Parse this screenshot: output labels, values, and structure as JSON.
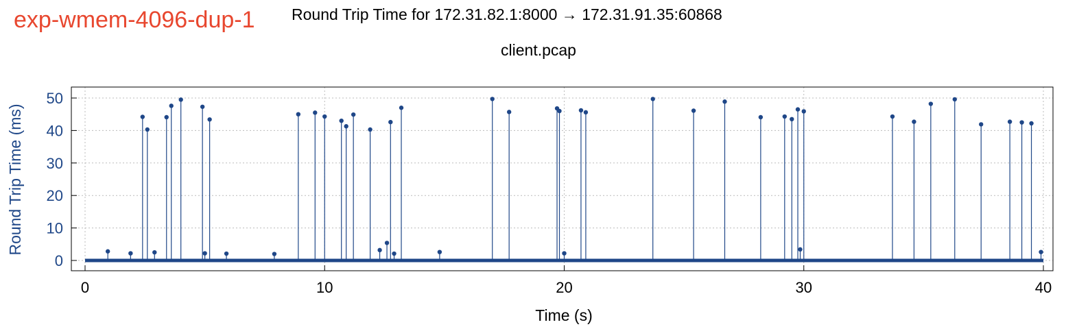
{
  "figure": {
    "label": "exp-wmem-4096-dup-1",
    "label_color": "#e8472f"
  },
  "chart_data": {
    "type": "scatter",
    "style": "stem",
    "title": "Round Trip Time for 172.31.82.1:8000 → 172.31.91.35:60868",
    "subtitle": "client.pcap",
    "xlabel": "Time (s)",
    "ylabel": "Round Trip Time (ms)",
    "xlim": [
      0,
      40
    ],
    "ylim": [
      0,
      53
    ],
    "xticks": [
      0,
      10,
      20,
      30,
      40
    ],
    "yticks": [
      0,
      10,
      20,
      30,
      40,
      50
    ],
    "grid": true,
    "series_color": "#1f4788",
    "ylabel_color": "#1f4788",
    "series": [
      {
        "x": [
          0.95,
          1.9,
          2.4,
          2.6,
          2.9,
          3.4,
          3.6,
          4.0,
          4.9,
          5.0,
          5.2,
          5.9,
          7.9,
          8.9,
          9.6,
          10.0,
          10.7,
          10.9,
          11.2,
          11.9,
          12.3,
          12.6,
          12.75,
          12.9,
          13.2,
          14.8,
          17.0,
          17.7,
          19.7,
          19.8,
          20.0,
          20.7,
          20.9,
          23.7,
          25.4,
          26.7,
          28.2,
          29.2,
          29.5,
          29.75,
          29.85,
          30.0,
          33.7,
          34.6,
          35.3,
          36.3,
          37.4,
          38.6,
          39.1,
          39.5,
          39.9
        ],
        "y": [
          2.8,
          2.2,
          44.2,
          40.3,
          2.5,
          44.1,
          47.6,
          49.5,
          47.3,
          2.2,
          43.4,
          2.1,
          2.0,
          45.0,
          45.5,
          44.3,
          43.0,
          41.3,
          44.9,
          40.3,
          3.2,
          5.4,
          42.6,
          2.1,
          47.0,
          2.6,
          49.7,
          45.7,
          46.8,
          46.0,
          2.2,
          46.2,
          45.6,
          49.7,
          46.1,
          48.9,
          44.1,
          44.3,
          43.5,
          46.5,
          3.4,
          45.9,
          44.3,
          42.7,
          48.2,
          49.6,
          41.9,
          42.7,
          42.5,
          42.2,
          2.6
        ]
      }
    ]
  }
}
